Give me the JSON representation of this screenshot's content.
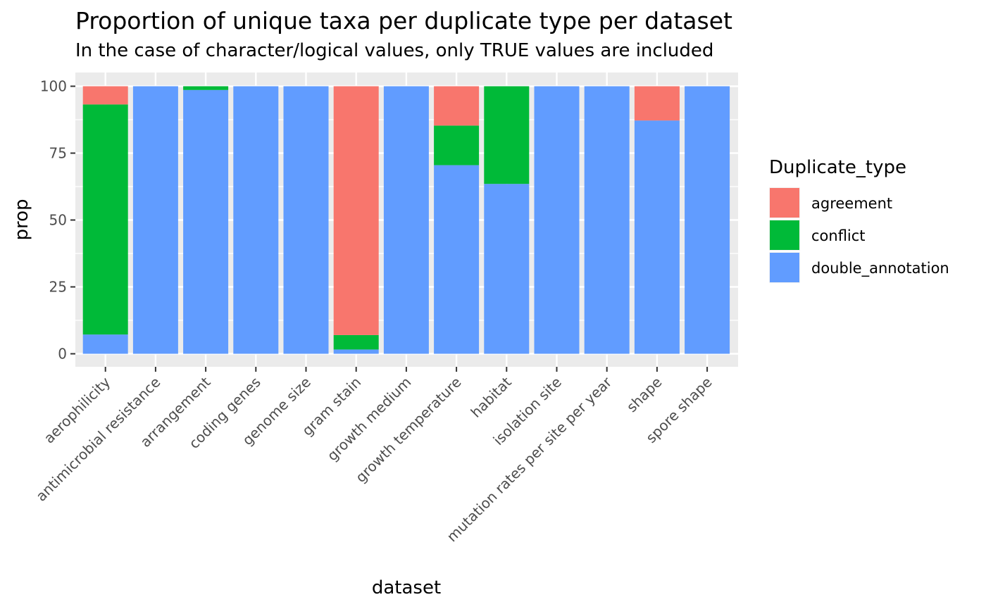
{
  "chart_data": {
    "type": "bar",
    "stacked": true,
    "title": "Proportion of unique taxa per duplicate type per dataset",
    "subtitle": "In the case of character/logical values, only TRUE values are included",
    "xlabel": "dataset",
    "ylabel": "prop",
    "ylim": [
      0,
      100
    ],
    "yticks": [
      "0",
      "25",
      "50",
      "75",
      "100"
    ],
    "grid": true,
    "legend": {
      "title": "Duplicate_type",
      "position": "right"
    },
    "categories": [
      "aerophilicity",
      "antimicrobial resistance",
      "arrangement",
      "coding genes",
      "genome size",
      "gram stain",
      "growth medium",
      "growth temperature",
      "habitat",
      "isolation site",
      "mutation rates per site per year",
      "shape",
      "spore shape"
    ],
    "series": [
      {
        "name": "agreement",
        "color": "#F8766D",
        "values": [
          6.8,
          0,
          0,
          0,
          0,
          93.0,
          0,
          14.7,
          0,
          0,
          0,
          12.8,
          0
        ]
      },
      {
        "name": "conflict",
        "color": "#00BA38",
        "values": [
          86.0,
          0,
          1.4,
          0,
          0,
          5.4,
          0,
          14.8,
          36.5,
          0,
          0,
          0,
          0
        ]
      },
      {
        "name": "double_annotation",
        "color": "#619CFF",
        "values": [
          7.2,
          100,
          98.6,
          100,
          100,
          1.6,
          100,
          70.5,
          63.5,
          100,
          100,
          87.2,
          100
        ]
      }
    ]
  }
}
